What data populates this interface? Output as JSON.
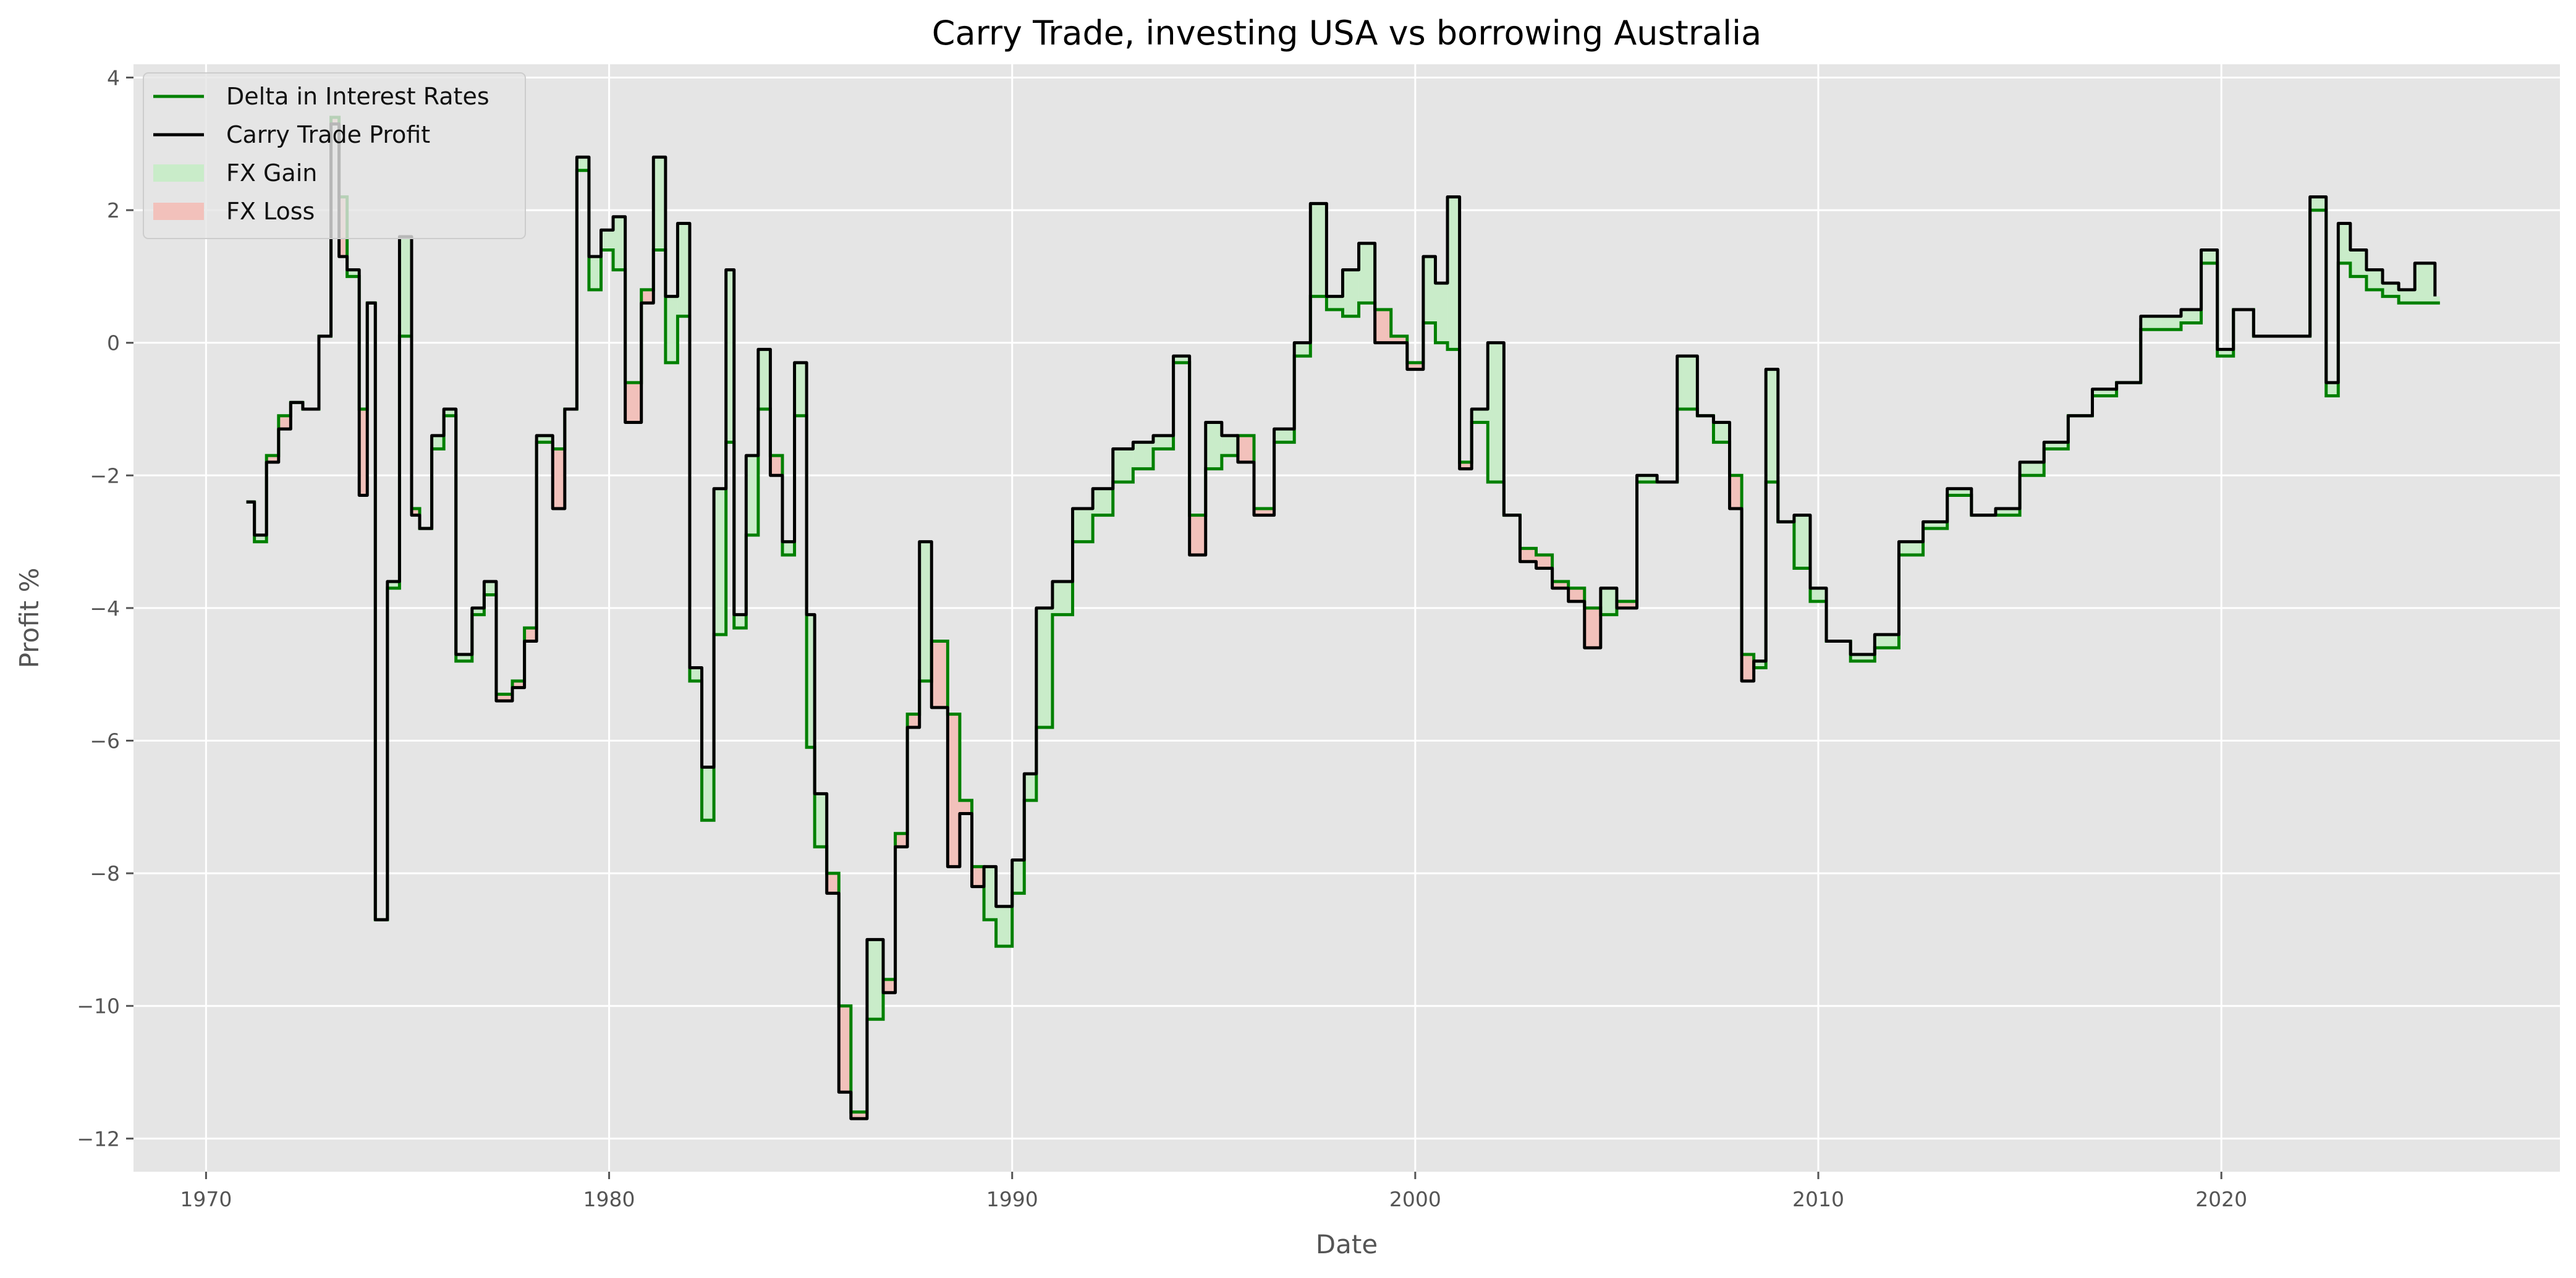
{
  "chart_data": {
    "type": "line",
    "title": "Carry Trade, investing USA vs borrowing Australia",
    "xlabel": "Date",
    "ylabel": "Profit %",
    "xlim": [
      1968.2,
      2028.4
    ],
    "ylim": [
      -12.5,
      4.2
    ],
    "xticks": [
      1970,
      1980,
      1990,
      2000,
      2010,
      2020
    ],
    "yticks": [
      4,
      2,
      0,
      -2,
      -4,
      -6,
      -8,
      -10,
      -12
    ],
    "grid": true,
    "legend_position": "top-left",
    "colors": {
      "axes_bg": "#e5e5e5",
      "grid": "#ffffff",
      "delta": "#008000",
      "profit": "#000000",
      "gain": "#c9ecc9",
      "loss": "#f2c1bb"
    },
    "series": [
      {
        "name": "Delta in Interest Rates",
        "style": "step",
        "x": [
          1971.0,
          1971.2,
          1971.3,
          1971.5,
          1971.8,
          1972.1,
          1972.4,
          1972.8,
          1973.1,
          1973.3,
          1973.5,
          1973.8,
          1974.0,
          1974.2,
          1974.5,
          1974.8,
          1975.1,
          1975.3,
          1975.6,
          1975.9,
          1976.2,
          1976.6,
          1976.9,
          1977.2,
          1977.6,
          1977.9,
          1978.2,
          1978.6,
          1978.9,
          1979.2,
          1979.5,
          1979.8,
          1980.1,
          1980.4,
          1980.8,
          1981.1,
          1981.4,
          1981.7,
          1982.0,
          1982.3,
          1982.6,
          1982.9,
          1983.1,
          1983.4,
          1983.7,
          1984.0,
          1984.3,
          1984.6,
          1984.9,
          1985.1,
          1985.4,
          1985.7,
          1986.0,
          1986.4,
          1986.8,
          1987.1,
          1987.4,
          1987.7,
          1988.0,
          1988.4,
          1988.7,
          1989.0,
          1989.3,
          1989.6,
          1990.0,
          1990.3,
          1990.6,
          1991.0,
          1991.5,
          1992.0,
          1992.5,
          1993.0,
          1993.5,
          1994.0,
          1994.4,
          1994.8,
          1995.2,
          1995.6,
          1996.0,
          1996.5,
          1997.0,
          1997.4,
          1997.8,
          1998.2,
          1998.6,
          1999.0,
          1999.4,
          1999.8,
          2000.2,
          2000.5,
          2000.8,
          2001.1,
          2001.4,
          2001.8,
          2002.2,
          2002.6,
          2003.0,
          2003.4,
          2003.8,
          2004.2,
          2004.6,
          2005.0,
          2005.5,
          2006.0,
          2006.5,
          2007.0,
          2007.4,
          2007.8,
          2008.1,
          2008.4,
          2008.7,
          2009.0,
          2009.4,
          2009.8,
          2010.2,
          2010.8,
          2011.4,
          2012.0,
          2012.6,
          2013.2,
          2013.8,
          2014.4,
          2015.0,
          2015.6,
          2016.2,
          2016.8,
          2017.4,
          2018.0,
          2018.5,
          2019.0,
          2019.5,
          2019.9,
          2020.3,
          2020.8,
          2021.3,
          2021.8,
          2022.2,
          2022.6,
          2022.9,
          2023.2,
          2023.6,
          2024.0,
          2024.4,
          2024.8,
          2025.3
        ],
        "y": [
          -2.4,
          -3.0,
          -3.0,
          -1.7,
          -1.1,
          -0.9,
          -1.0,
          0.1,
          3.4,
          2.2,
          1.0,
          -1.0,
          0.6,
          -8.7,
          -3.7,
          0.1,
          -2.5,
          -2.8,
          -1.6,
          -1.1,
          -4.8,
          -4.1,
          -3.8,
          -5.3,
          -5.1,
          -4.3,
          -1.5,
          -1.6,
          -1.0,
          2.6,
          0.8,
          1.4,
          1.1,
          -0.6,
          0.8,
          1.4,
          -0.3,
          0.4,
          -5.1,
          -7.2,
          -4.4,
          -1.5,
          -4.3,
          -2.9,
          -1.0,
          -1.7,
          -3.2,
          -1.1,
          -6.1,
          -7.6,
          -8.0,
          -10.0,
          -11.6,
          -10.2,
          -9.6,
          -7.4,
          -5.6,
          -5.1,
          -4.5,
          -5.6,
          -6.9,
          -7.9,
          -8.7,
          -9.1,
          -8.3,
          -6.9,
          -5.8,
          -4.1,
          -3.0,
          -2.6,
          -2.1,
          -1.9,
          -1.6,
          -0.3,
          -2.6,
          -1.9,
          -1.7,
          -1.4,
          -2.5,
          -1.5,
          -0.2,
          0.7,
          0.5,
          0.4,
          0.6,
          0.5,
          0.1,
          -0.3,
          0.3,
          0.0,
          -0.1,
          -1.8,
          -1.2,
          -2.1,
          -2.6,
          -3.1,
          -3.2,
          -3.6,
          -3.7,
          -4.0,
          -4.1,
          -3.9,
          -2.1,
          -2.1,
          -1.0,
          -1.1,
          -1.5,
          -2.0,
          -4.7,
          -4.9,
          -2.1,
          -2.7,
          -3.4,
          -3.9,
          -4.5,
          -4.8,
          -4.6,
          -3.2,
          -2.8,
          -2.3,
          -2.6,
          -2.6,
          -2.0,
          -1.6,
          -1.1,
          -0.8,
          -0.6,
          0.2,
          0.2,
          0.3,
          1.2,
          -0.2,
          0.5,
          0.1,
          0.1,
          0.1,
          2.0,
          -0.8,
          1.2,
          1.0,
          0.8,
          0.7,
          0.6,
          0.6,
          0.6
        ]
      },
      {
        "name": "Carry Trade Profit",
        "style": "line",
        "x": [
          1971.0,
          1971.2,
          1971.3,
          1971.5,
          1971.8,
          1972.1,
          1972.4,
          1972.8,
          1973.1,
          1973.3,
          1973.5,
          1973.8,
          1974.0,
          1974.2,
          1974.5,
          1974.8,
          1975.1,
          1975.3,
          1975.6,
          1975.9,
          1976.2,
          1976.6,
          1976.9,
          1977.2,
          1977.6,
          1977.9,
          1978.2,
          1978.6,
          1978.9,
          1979.2,
          1979.5,
          1979.8,
          1980.1,
          1980.4,
          1980.8,
          1981.1,
          1981.4,
          1981.7,
          1982.0,
          1982.3,
          1982.6,
          1982.9,
          1983.1,
          1983.4,
          1983.7,
          1984.0,
          1984.3,
          1984.6,
          1984.9,
          1985.1,
          1985.4,
          1985.7,
          1986.0,
          1986.4,
          1986.8,
          1987.1,
          1987.4,
          1987.7,
          1988.0,
          1988.4,
          1988.7,
          1989.0,
          1989.3,
          1989.6,
          1990.0,
          1990.3,
          1990.6,
          1991.0,
          1991.5,
          1992.0,
          1992.5,
          1993.0,
          1993.5,
          1994.0,
          1994.4,
          1994.8,
          1995.2,
          1995.6,
          1996.0,
          1996.5,
          1997.0,
          1997.4,
          1997.8,
          1998.2,
          1998.6,
          1999.0,
          1999.4,
          1999.8,
          2000.2,
          2000.5,
          2000.8,
          2001.1,
          2001.4,
          2001.8,
          2002.2,
          2002.6,
          2003.0,
          2003.4,
          2003.8,
          2004.2,
          2004.6,
          2005.0,
          2005.5,
          2006.0,
          2006.5,
          2007.0,
          2007.4,
          2007.8,
          2008.1,
          2008.4,
          2008.7,
          2009.0,
          2009.4,
          2009.8,
          2010.2,
          2010.8,
          2011.4,
          2012.0,
          2012.6,
          2013.2,
          2013.8,
          2014.4,
          2015.0,
          2015.6,
          2016.2,
          2016.8,
          2017.4,
          2018.0,
          2018.5,
          2019.0,
          2019.5,
          2019.9,
          2020.3,
          2020.8,
          2021.3,
          2021.8,
          2022.2,
          2022.6,
          2022.9,
          2023.2,
          2023.6,
          2024.0,
          2024.4,
          2024.8,
          2025.3
        ],
        "y": [
          -2.4,
          -2.9,
          -2.9,
          -1.8,
          -1.3,
          -0.9,
          -1.0,
          0.1,
          3.3,
          1.3,
          1.1,
          -2.3,
          0.6,
          -8.7,
          -3.6,
          1.6,
          -2.6,
          -2.8,
          -1.4,
          -1.0,
          -4.7,
          -4.0,
          -3.6,
          -5.4,
          -5.2,
          -4.5,
          -1.4,
          -2.5,
          -1.0,
          2.8,
          1.3,
          1.7,
          1.9,
          -1.2,
          0.6,
          2.8,
          0.7,
          1.8,
          -4.9,
          -6.4,
          -2.2,
          1.1,
          -4.1,
          -1.7,
          -0.1,
          -2.0,
          -3.0,
          -0.3,
          -4.1,
          -6.8,
          -8.3,
          -11.3,
          -11.7,
          -9.0,
          -9.8,
          -7.6,
          -5.8,
          -3.0,
          -5.5,
          -7.9,
          -7.1,
          -8.2,
          -7.9,
          -8.5,
          -7.8,
          -6.5,
          -4.0,
          -3.6,
          -2.5,
          -2.2,
          -1.6,
          -1.5,
          -1.4,
          -0.2,
          -3.2,
          -1.2,
          -1.4,
          -1.8,
          -2.6,
          -1.3,
          0.0,
          2.1,
          0.7,
          1.1,
          1.5,
          0.0,
          0.0,
          -0.4,
          1.3,
          0.9,
          2.2,
          -1.9,
          -1.0,
          0.0,
          -2.6,
          -3.3,
          -3.4,
          -3.7,
          -3.9,
          -4.6,
          -3.7,
          -4.0,
          -2.0,
          -2.1,
          -0.2,
          -1.1,
          -1.2,
          -2.5,
          -5.1,
          -4.8,
          -0.4,
          -2.7,
          -2.6,
          -3.7,
          -4.5,
          -4.7,
          -4.4,
          -3.0,
          -2.7,
          -2.2,
          -2.6,
          -2.5,
          -1.8,
          -1.5,
          -1.1,
          -0.7,
          -0.6,
          0.4,
          0.4,
          0.5,
          1.4,
          -0.1,
          0.5,
          0.1,
          0.1,
          0.1,
          2.2,
          -0.6,
          1.8,
          1.4,
          1.1,
          0.9,
          0.8,
          1.2,
          0.7
        ]
      },
      {
        "name": "FX Gain",
        "style": "fill"
      },
      {
        "name": "FX Loss",
        "style": "fill"
      }
    ]
  }
}
